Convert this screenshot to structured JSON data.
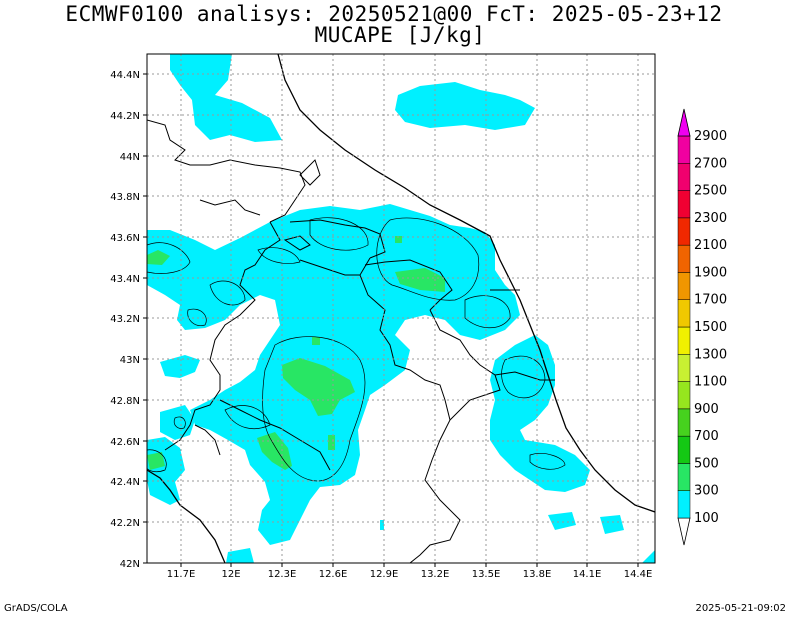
{
  "title": {
    "line1": "ECMWF0100 analisys: 20250521@00 FcT: 2025-05-23+12",
    "line2": "MUCAPE [J/kg]"
  },
  "map": {
    "lon_range": [
      11.5,
      14.5
    ],
    "lat_range": [
      42.0,
      44.5
    ],
    "lon_ticks": [
      "11.7E",
      "12E",
      "12.3E",
      "12.6E",
      "12.9E",
      "13.2E",
      "13.5E",
      "13.8E",
      "14.1E",
      "14.4E"
    ],
    "lat_ticks": [
      "42N",
      "42.2N",
      "42.4N",
      "42.6N",
      "42.8N",
      "43N",
      "43.2N",
      "43.4N",
      "43.6N",
      "43.8N",
      "44N",
      "44.2N",
      "44.4N"
    ],
    "grid": true
  },
  "colorbar": {
    "labels": [
      "100",
      "300",
      "500",
      "700",
      "900",
      "1100",
      "1300",
      "1500",
      "1700",
      "1900",
      "2100",
      "2300",
      "2500",
      "2700",
      "2900"
    ],
    "colors": [
      "#00f0ff",
      "#28e664",
      "#14c814",
      "#46d21e",
      "#96e61e",
      "#c8f032",
      "#f0f000",
      "#f0c800",
      "#f09600",
      "#f06400",
      "#f02800",
      "#f00032",
      "#f0006e",
      "#f000a0",
      "#f000f0"
    ]
  },
  "footer": {
    "left": "GrADS/COLA",
    "right": "2025-05-21-09:02"
  }
}
